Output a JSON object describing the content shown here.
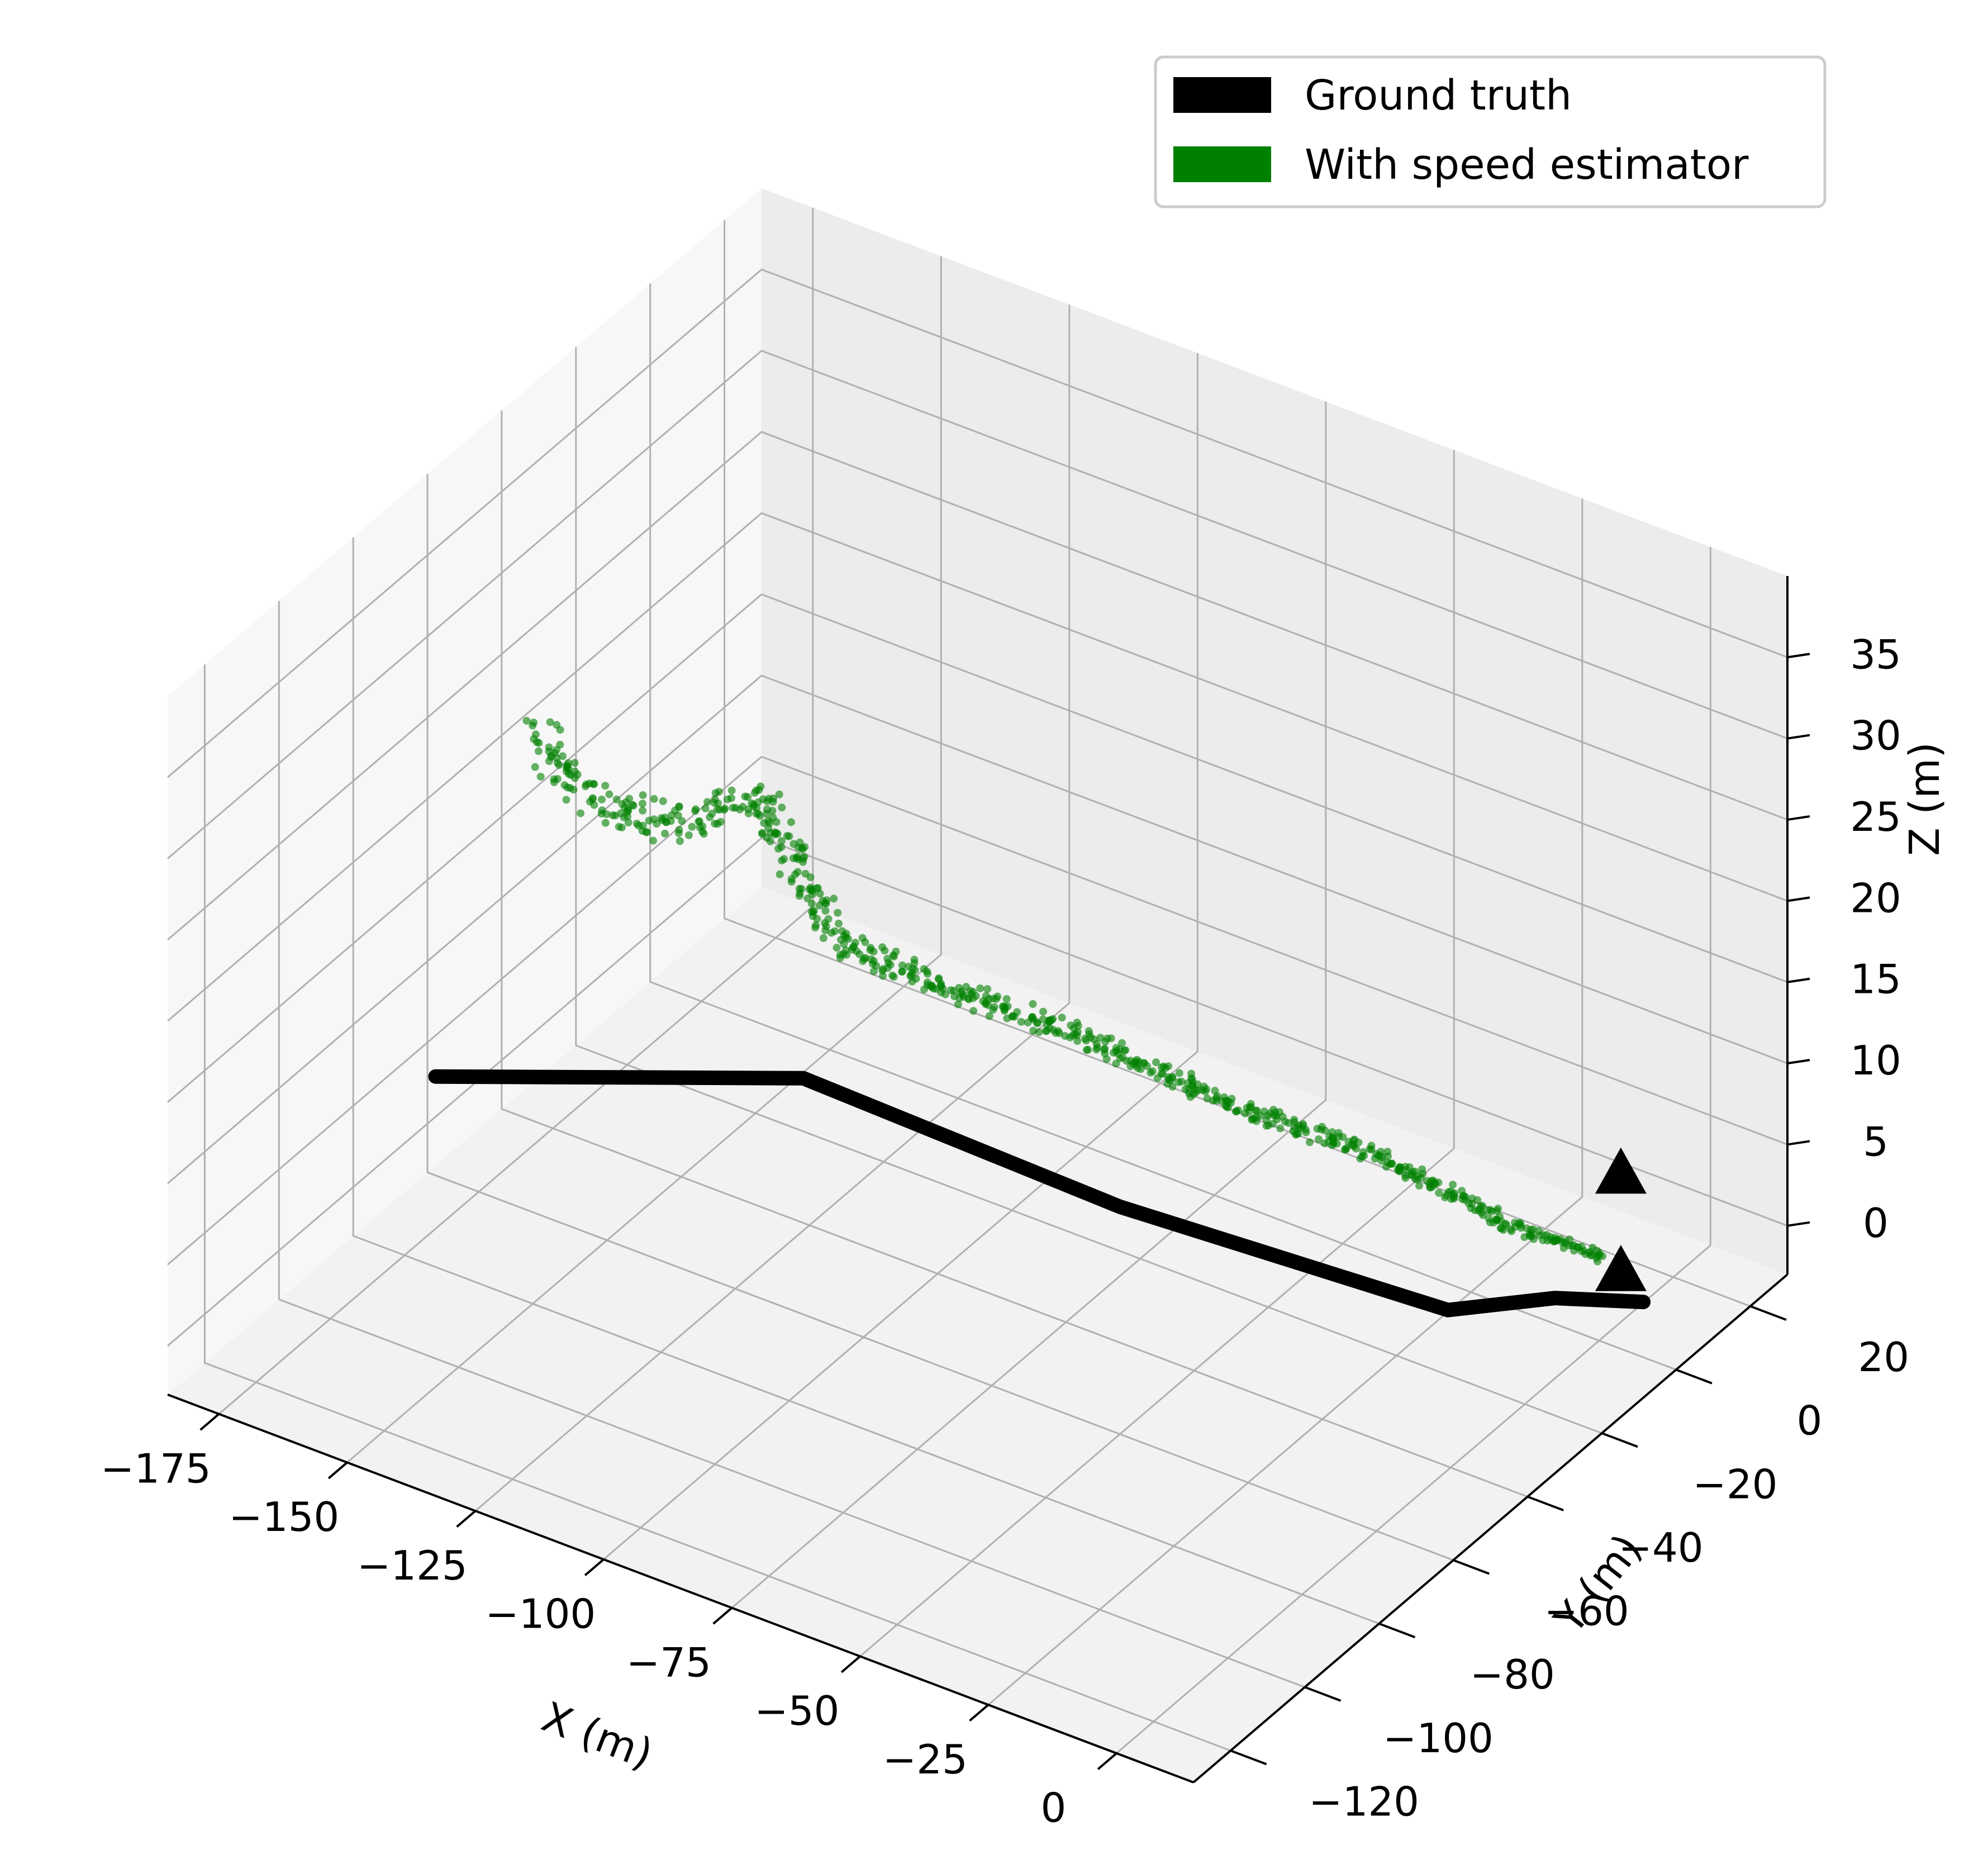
{
  "chart_data": {
    "type": "scatter",
    "projection": "3d",
    "xlabel": "X (m)",
    "ylabel": "Y (m)",
    "zlabel": "Z (m)",
    "xlim": [
      -185,
      15
    ],
    "ylim": [
      -130,
      30
    ],
    "zlim": [
      -3,
      40
    ],
    "x_ticks": [
      -175,
      -150,
      -125,
      -100,
      -75,
      -50,
      -25,
      0
    ],
    "x_tick_labels": [
      "−175",
      "−150",
      "−125",
      "−100",
      "−75",
      "−50",
      "−25",
      "0"
    ],
    "y_ticks": [
      -120,
      -100,
      -80,
      -60,
      -40,
      -20,
      0,
      20
    ],
    "y_tick_labels": [
      "−120",
      "−100",
      "−80",
      "−60",
      "−40",
      "−20",
      "0",
      "20"
    ],
    "z_ticks": [
      0,
      5,
      10,
      15,
      20,
      25,
      30,
      35
    ],
    "z_tick_labels": [
      "0",
      "5",
      "10",
      "15",
      "20",
      "25",
      "30",
      "35"
    ],
    "grid": true,
    "legend_position": "top-right",
    "series": [
      {
        "name": "Ground truth",
        "kind": "line",
        "color": "#000000",
        "points": [
          [
            -140,
            -120,
            20
          ],
          [
            -90,
            -90,
            20
          ],
          [
            -50,
            -60,
            11
          ],
          [
            -15,
            -20,
            1
          ],
          [
            -5,
            -5,
            0
          ],
          [
            5,
            5,
            -1
          ]
        ]
      },
      {
        "name": "With speed estimator",
        "kind": "scatter",
        "color": "#008000",
        "points": [
          [
            -5,
            8,
            0
          ],
          [
            -15,
            0,
            2
          ],
          [
            -35,
            -10,
            6
          ],
          [
            -55,
            -25,
            10
          ],
          [
            -75,
            -40,
            15
          ],
          [
            -90,
            -55,
            19
          ],
          [
            -100,
            -65,
            22
          ],
          [
            -105,
            -72,
            28
          ],
          [
            -107,
            -78,
            33
          ],
          [
            -120,
            -85,
            31
          ],
          [
            -130,
            -92,
            33
          ],
          [
            -132,
            -98,
            36
          ],
          [
            -135,
            -100,
            38
          ]
        ]
      }
    ],
    "markers": [
      {
        "symbol": "triangle",
        "color": "#000000",
        "point": [
          -3,
          10,
          5
        ]
      },
      {
        "symbol": "triangle",
        "color": "#000000",
        "point": [
          -3,
          10,
          -1
        ]
      }
    ]
  }
}
